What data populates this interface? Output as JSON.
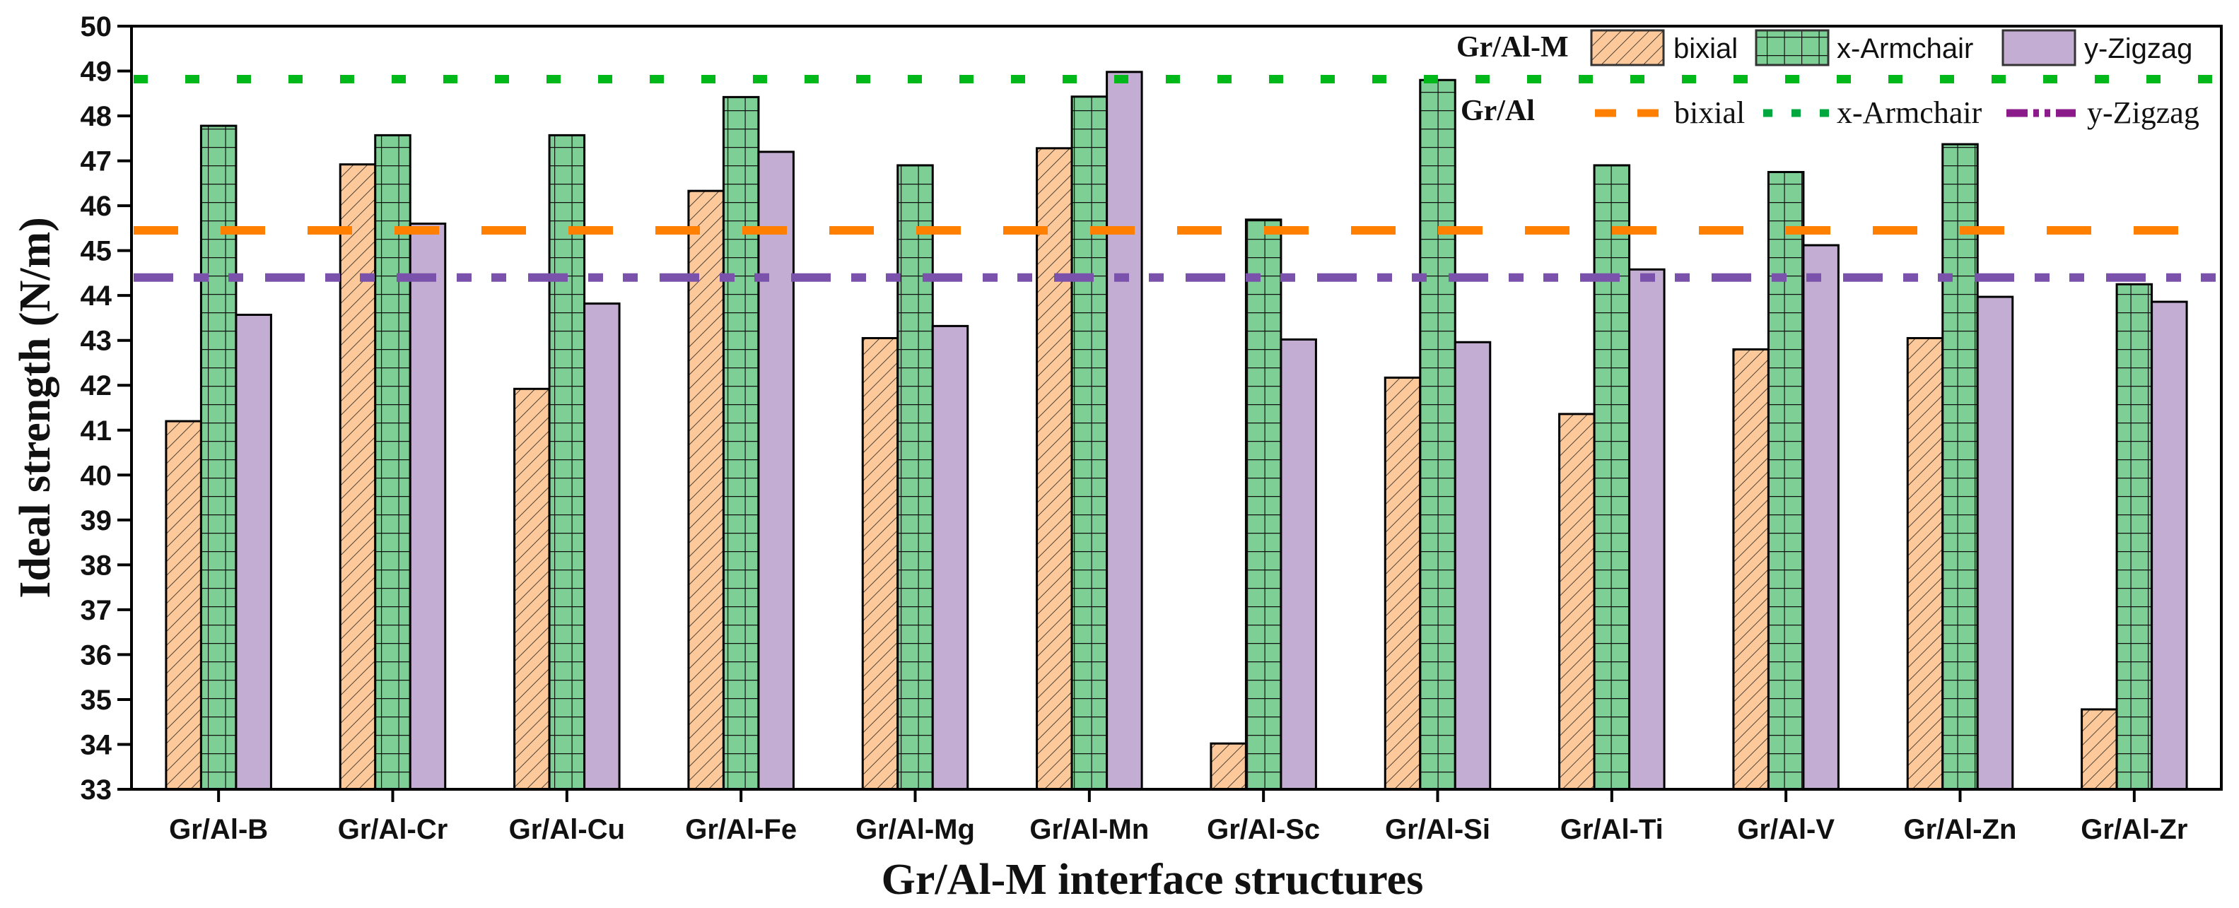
{
  "chart_data": {
    "type": "bar",
    "title": "",
    "xlabel": "Gr/Al-M interface structures",
    "ylabel": "Ideal strength (N/m)",
    "ylim": [
      33,
      50
    ],
    "ytick_step": 1,
    "grid": false,
    "categories": [
      "Gr/Al-B",
      "Gr/Al-Cr",
      "Gr/Al-Cu",
      "Gr/Al-Fe",
      "Gr/Al-Mg",
      "Gr/Al-Mn",
      "Gr/Al-Sc",
      "Gr/Al-Si",
      "Gr/Al-Ti",
      "Gr/Al-V",
      "Gr/Al-Zn",
      "Gr/Al-Zr"
    ],
    "series": [
      {
        "name": "bixial",
        "color": "#FDC99A",
        "pattern": "diagonal-hatch",
        "values": [
          41.2,
          46.92,
          41.92,
          46.33,
          43.05,
          47.28,
          34.02,
          42.17,
          41.36,
          42.8,
          43.05,
          34.78
        ]
      },
      {
        "name": "x-Armchair",
        "color": "#7DCF96",
        "pattern": "grid",
        "values": [
          47.78,
          47.57,
          47.57,
          48.42,
          46.9,
          48.43,
          45.69,
          48.8,
          46.9,
          46.75,
          47.37,
          44.25
        ]
      },
      {
        "name": "y-Zigzag",
        "color": "#C4ADD2",
        "pattern": "solid",
        "values": [
          43.57,
          45.6,
          43.82,
          47.2,
          43.32,
          48.98,
          43.02,
          42.96,
          44.58,
          45.12,
          43.97,
          43.86
        ]
      }
    ],
    "reference_lines": [
      {
        "name": "bixial",
        "value": 45.45,
        "color": "#FF7F00",
        "style": "dash"
      },
      {
        "name": "x-Armchair",
        "value": 48.82,
        "color": "#00B81A",
        "style": "dot"
      },
      {
        "name": "y-Zigzag",
        "value": 44.4,
        "color": "#7B52AB",
        "style": "dash-dot-dot"
      }
    ],
    "legend": {
      "placement": "top-right",
      "group1_title": "Gr/Al-M",
      "group2_title": "Gr/Al",
      "group1_labels": [
        "bixial",
        "x-Armchair",
        "y-Zigzag"
      ],
      "group2_labels": [
        "bixial",
        "x-Armchair",
        "y-Zigzag"
      ]
    }
  }
}
